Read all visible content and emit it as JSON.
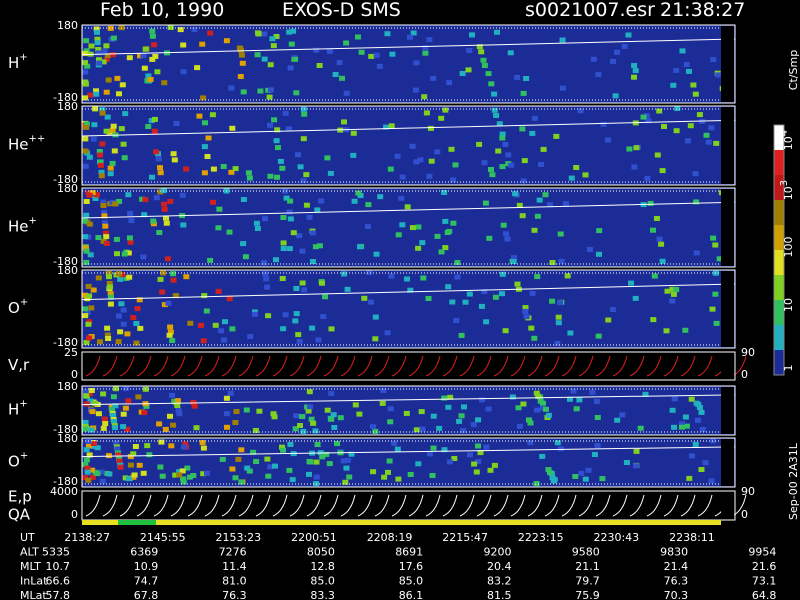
{
  "header": {
    "date": "Feb 10, 1990",
    "instrument": "EXOS-D SMS",
    "file": "s0021007.esr",
    "time": "21:38:27"
  },
  "panels": [
    {
      "label": "H",
      "sup": "+",
      "top": "180",
      "bottom": "-180"
    },
    {
      "label": "He",
      "sup": "++",
      "top": "180",
      "bottom": "-180"
    },
    {
      "label": "He",
      "sup": "+",
      "top": "180",
      "bottom": "-180"
    },
    {
      "label": "O",
      "sup": "+",
      "top": "180",
      "bottom": "-180"
    },
    {
      "label": "V,r",
      "top": "25",
      "bottom": "0",
      "right_top": "90",
      "right_bottom": "0"
    },
    {
      "label": "H",
      "sup": "+",
      "top": "180",
      "bottom": "-180"
    },
    {
      "label": "O",
      "sup": "+",
      "top": "180",
      "bottom": "-180"
    },
    {
      "label": "E,p",
      "label2": "QA",
      "top": "4000",
      "bottom": "0",
      "right_top": "90",
      "right_bottom": "0"
    }
  ],
  "colorbar": {
    "unit": "Ct/Smp",
    "labels": [
      {
        "base": "10",
        "exp": "4"
      },
      {
        "base": "10",
        "exp": "3"
      },
      {
        "base": "100"
      },
      {
        "base": "10"
      },
      {
        "base": "1"
      }
    ]
  },
  "table": {
    "rows": [
      [
        "UT",
        "2138:27",
        "2145:55",
        "2153:23",
        "2200:51",
        "2208:19",
        "2215:47",
        "2223:15",
        "2230:43",
        "2238:11"
      ],
      [
        "ALT",
        "5335",
        "6369",
        "7276",
        "8050",
        "8691",
        "9200",
        "9580",
        "9830",
        "9954"
      ],
      [
        "MLT",
        "10.7",
        "10.9",
        "11.4",
        "12.8",
        "17.6",
        "20.4",
        "21.1",
        "21.4",
        "21.6"
      ],
      [
        "InLat",
        "66.6",
        "74.7",
        "81.0",
        "85.0",
        "85.0",
        "83.2",
        "79.7",
        "76.3",
        "73.1"
      ],
      [
        "MLat",
        "57.8",
        "67.8",
        "76.3",
        "83.3",
        "86.1",
        "81.5",
        "75.9",
        "70.3",
        "64.8"
      ]
    ]
  },
  "footer": "Sep-00 2A31L"
}
